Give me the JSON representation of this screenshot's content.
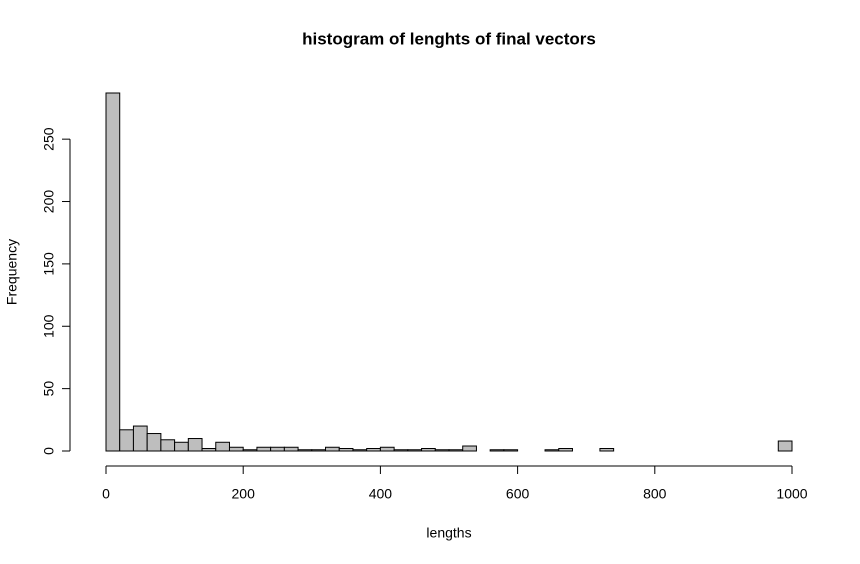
{
  "chart_data": {
    "type": "histogram",
    "title": "histogram of lenghts of final vectors",
    "x_label": "lengths",
    "y_label": "Frequency",
    "bins": [
      0,
      20,
      40,
      60,
      80,
      100,
      120,
      140,
      160,
      180,
      200,
      220,
      240,
      260,
      280,
      300,
      320,
      340,
      360,
      380,
      400,
      420,
      440,
      460,
      480,
      500,
      520,
      540,
      560,
      580,
      600,
      620,
      640,
      660,
      680,
      700,
      720,
      740,
      760,
      780,
      800,
      820,
      840,
      860,
      880,
      900,
      920,
      940,
      960,
      980,
      1000
    ],
    "counts": [
      287,
      17,
      20,
      14,
      9,
      7,
      10,
      2,
      7,
      3,
      1,
      3,
      3,
      3,
      1,
      1,
      3,
      2,
      1,
      2,
      3,
      1,
      1,
      2,
      1,
      1,
      4,
      0,
      1,
      1,
      0,
      0,
      1,
      2,
      0,
      0,
      2,
      0,
      0,
      0,
      0,
      0,
      0,
      0,
      0,
      0,
      0,
      0,
      0,
      8
    ],
    "color": "#bebebe",
    "xlim": [
      0,
      1000
    ],
    "xticks": [
      0,
      200,
      400,
      600,
      800,
      1000
    ],
    "ylim": [
      0,
      287
    ],
    "yticks": [
      0,
      50,
      100,
      150,
      200,
      250
    ]
  }
}
